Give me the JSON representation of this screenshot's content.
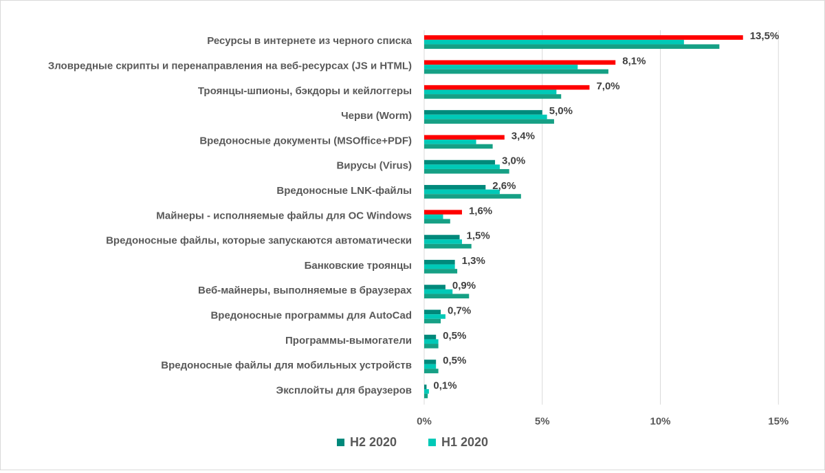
{
  "chart_data": {
    "type": "bar",
    "orientation": "horizontal",
    "categories": [
      "Ресурсы в интернете из черного списка",
      "Зловредные скрипты и перенаправления на веб-ресурсах (JS и HTML)",
      "Троянцы-шпионы, бэкдоры и кейлоггеры",
      "Черви (Worm)",
      "Вредоносные документы (MSOffice+PDF)",
      "Вирусы (Virus)",
      "Вредоносные LNK-файлы",
      "Майнеры - исполняемые файлы для ОС Windows",
      "Вредоносные файлы, которые запускаются автоматически",
      "Банковские троянцы",
      "Веб-майнеры, выполняемые в браузерах",
      "Вредоносные программы для AutoCad",
      "Программы-вымогатели",
      "Вредоносные файлы для мобильных устройств",
      "Эксплойты для браузеров"
    ],
    "series": [
      {
        "name": "H2 2020",
        "values": [
          13.5,
          8.1,
          7.0,
          5.0,
          3.4,
          3.0,
          2.6,
          1.6,
          1.5,
          1.3,
          0.9,
          0.7,
          0.5,
          0.5,
          0.1
        ],
        "labels": [
          "13,5%",
          "8,1%",
          "7,0%",
          "5,0%",
          "3,4%",
          "3,0%",
          "2,6%",
          "1,6%",
          "1,5%",
          "1,3%",
          "0,9%",
          "0,7%",
          "0,5%",
          "0,5%",
          "0,1%"
        ]
      },
      {
        "name": "H1 2020",
        "values": [
          11.0,
          6.5,
          5.6,
          5.2,
          2.2,
          3.2,
          3.2,
          0.8,
          1.6,
          1.3,
          1.2,
          0.9,
          0.6,
          0.5,
          0.2
        ]
      },
      {
        "values": [
          12.5,
          7.8,
          5.8,
          5.5,
          2.9,
          3.6,
          4.1,
          1.1,
          2.0,
          1.4,
          1.9,
          0.7,
          0.6,
          0.6,
          0.15
        ]
      }
    ],
    "highlight": [
      true,
      true,
      true,
      false,
      true,
      false,
      false,
      true,
      false,
      false,
      false,
      false,
      false,
      false,
      false
    ],
    "xlim": [
      0,
      15
    ],
    "xticks": [
      0,
      5,
      10,
      15
    ],
    "xtick_labels": [
      "0%",
      "5%",
      "10%",
      "15%"
    ],
    "grid": true,
    "legend": "bottom",
    "colors": {
      "h2": "#00897b",
      "h1": "#00c9b7",
      "third": "#16a085",
      "highlight": "#ff0000",
      "grid": "#d9d9d9"
    }
  }
}
